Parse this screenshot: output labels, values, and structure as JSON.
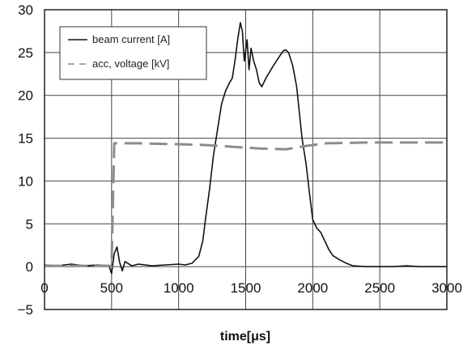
{
  "chart_data": {
    "type": "line",
    "title": "",
    "xlabel": "time[μs]",
    "ylabel": "",
    "xlim": [
      0,
      3000
    ],
    "ylim": [
      -5,
      30
    ],
    "x_ticks": [
      0,
      500,
      1000,
      1500,
      2000,
      2500,
      3000
    ],
    "y_ticks": [
      -5,
      0,
      5,
      10,
      15,
      20,
      25,
      30
    ],
    "grid": true,
    "legend": {
      "placement": "top-left"
    },
    "series": [
      {
        "name": "beam current [A]",
        "color": "#111111",
        "style": "solid",
        "points": [
          [
            0,
            0.2
          ],
          [
            100,
            0.1
          ],
          [
            200,
            0.3
          ],
          [
            300,
            0.1
          ],
          [
            400,
            0.2
          ],
          [
            480,
            0.1
          ],
          [
            500,
            -0.8
          ],
          [
            520,
            1.5
          ],
          [
            540,
            2.3
          ],
          [
            560,
            0.5
          ],
          [
            580,
            -0.5
          ],
          [
            600,
            0.6
          ],
          [
            650,
            0.1
          ],
          [
            700,
            0.3
          ],
          [
            800,
            0.1
          ],
          [
            900,
            0.2
          ],
          [
            1000,
            0.3
          ],
          [
            1050,
            0.2
          ],
          [
            1100,
            0.4
          ],
          [
            1150,
            1.2
          ],
          [
            1180,
            3.0
          ],
          [
            1200,
            5.5
          ],
          [
            1230,
            9.0
          ],
          [
            1260,
            13.0
          ],
          [
            1290,
            16.0
          ],
          [
            1320,
            19.0
          ],
          [
            1350,
            20.5
          ],
          [
            1380,
            21.5
          ],
          [
            1400,
            22.0
          ],
          [
            1420,
            24.0
          ],
          [
            1440,
            26.5
          ],
          [
            1460,
            28.5
          ],
          [
            1475,
            27.5
          ],
          [
            1490,
            24.0
          ],
          [
            1510,
            26.5
          ],
          [
            1525,
            23.0
          ],
          [
            1540,
            25.5
          ],
          [
            1560,
            24.0
          ],
          [
            1580,
            23.0
          ],
          [
            1600,
            21.5
          ],
          [
            1620,
            21.0
          ],
          [
            1650,
            22.0
          ],
          [
            1700,
            23.3
          ],
          [
            1750,
            24.5
          ],
          [
            1780,
            25.2
          ],
          [
            1800,
            25.3
          ],
          [
            1820,
            25.0
          ],
          [
            1850,
            23.5
          ],
          [
            1880,
            21.0
          ],
          [
            1900,
            18.0
          ],
          [
            1920,
            15.0
          ],
          [
            1950,
            12.0
          ],
          [
            1980,
            8.0
          ],
          [
            2000,
            5.5
          ],
          [
            2030,
            4.5
          ],
          [
            2060,
            4.0
          ],
          [
            2090,
            3.0
          ],
          [
            2120,
            2.0
          ],
          [
            2150,
            1.3
          ],
          [
            2200,
            0.8
          ],
          [
            2250,
            0.4
          ],
          [
            2300,
            0.1
          ],
          [
            2400,
            0.0
          ],
          [
            2500,
            0.0
          ],
          [
            2600,
            0.0
          ],
          [
            2700,
            0.1
          ],
          [
            2800,
            0.0
          ],
          [
            2900,
            0.0
          ],
          [
            3000,
            0.0
          ]
        ]
      },
      {
        "name": "acc, voltage [kV]",
        "color": "#8c8c8c",
        "style": "dashed",
        "points": [
          [
            0,
            0.1
          ],
          [
            250,
            0.1
          ],
          [
            490,
            0.1
          ],
          [
            500,
            0.0
          ],
          [
            520,
            14.4
          ],
          [
            700,
            14.4
          ],
          [
            1000,
            14.3
          ],
          [
            1200,
            14.2
          ],
          [
            1400,
            14.0
          ],
          [
            1600,
            13.8
          ],
          [
            1800,
            13.7
          ],
          [
            1950,
            14.1
          ],
          [
            2100,
            14.4
          ],
          [
            2400,
            14.5
          ],
          [
            2700,
            14.5
          ],
          [
            3000,
            14.5
          ]
        ]
      }
    ]
  }
}
